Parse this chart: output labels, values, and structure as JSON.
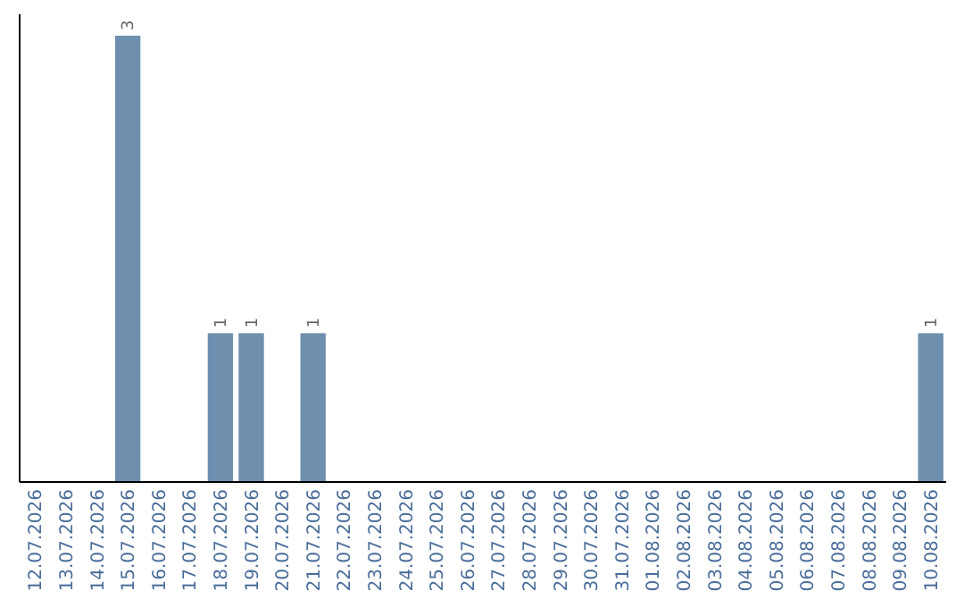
{
  "chart_data": {
    "type": "bar",
    "categories": [
      "12.07.2026",
      "13.07.2026",
      "14.07.2026",
      "15.07.2026",
      "16.07.2026",
      "17.07.2026",
      "18.07.2026",
      "19.07.2026",
      "20.07.2026",
      "21.07.2026",
      "22.07.2026",
      "23.07.2026",
      "24.07.2026",
      "25.07.2026",
      "26.07.2026",
      "27.07.2026",
      "28.07.2026",
      "29.07.2026",
      "30.07.2026",
      "31.07.2026",
      "01.08.2026",
      "02.08.2026",
      "03.08.2026",
      "04.08.2026",
      "05.08.2026",
      "06.08.2026",
      "07.08.2026",
      "08.08.2026",
      "09.08.2026",
      "10.08.2026"
    ],
    "values": [
      0,
      0,
      0,
      3,
      0,
      0,
      1,
      1,
      0,
      1,
      0,
      0,
      0,
      0,
      0,
      0,
      0,
      0,
      0,
      0,
      0,
      0,
      0,
      0,
      0,
      0,
      0,
      0,
      0,
      1
    ],
    "value_labels": [
      null,
      null,
      null,
      "3",
      null,
      null,
      "1",
      "1",
      null,
      "1",
      null,
      null,
      null,
      null,
      null,
      null,
      null,
      null,
      null,
      null,
      null,
      null,
      null,
      null,
      null,
      null,
      null,
      null,
      null,
      "1"
    ],
    "color": "#6e8fae"
  }
}
